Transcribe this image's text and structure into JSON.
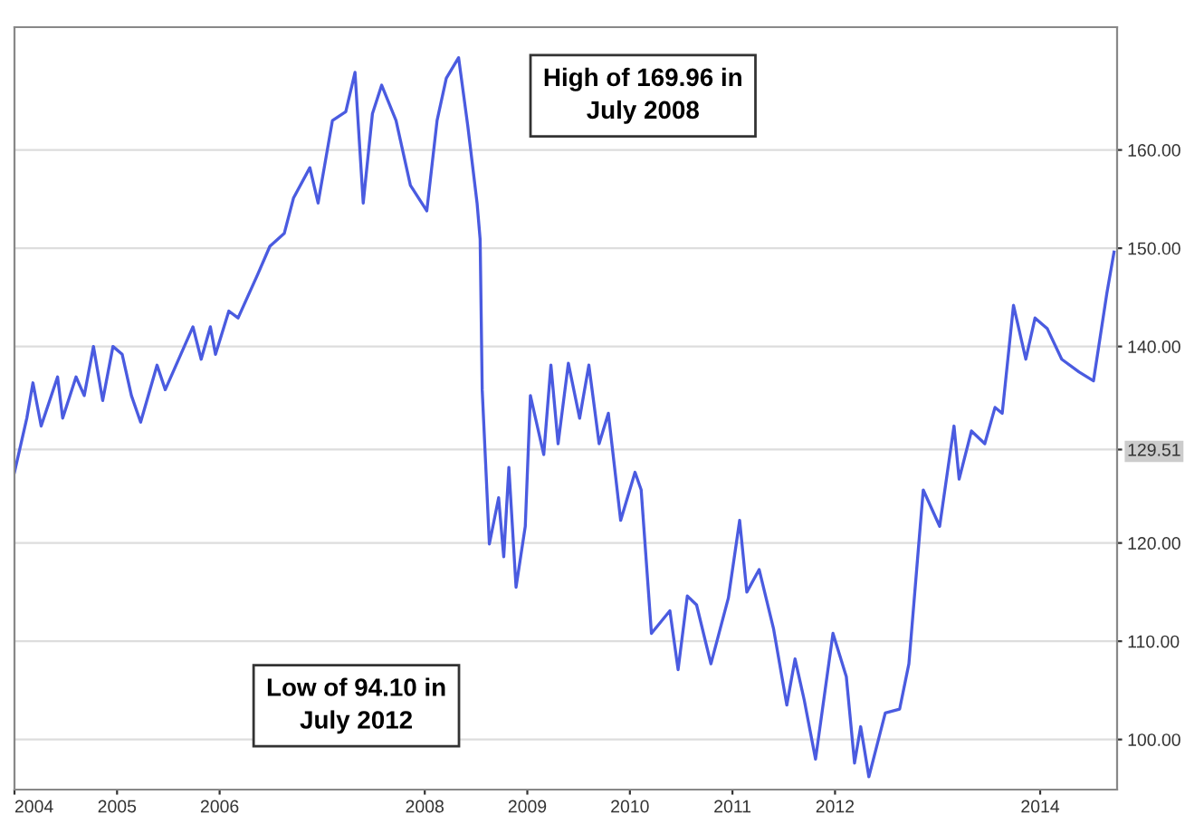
{
  "chart_data": {
    "type": "line",
    "x": [
      2004.0,
      2004.12,
      2004.18,
      2004.26,
      2004.42,
      2004.47,
      2004.6,
      2004.68,
      2004.77,
      2004.86,
      2004.96,
      2005.05,
      2005.14,
      2005.23,
      2005.39,
      2005.47,
      2005.74,
      2005.82,
      2005.91,
      2005.96,
      2006.09,
      2006.18,
      2006.37,
      2006.49,
      2006.63,
      2006.72,
      2006.88,
      2006.96,
      2007.1,
      2007.23,
      2007.32,
      2007.4,
      2007.49,
      2007.58,
      2007.72,
      2007.86,
      2008.02,
      2008.12,
      2008.21,
      2008.33,
      2008.42,
      2008.51,
      2008.54,
      2008.56,
      2008.63,
      2008.72,
      2008.77,
      2008.82,
      2008.89,
      2008.98,
      2009.03,
      2009.16,
      2009.23,
      2009.3,
      2009.4,
      2009.51,
      2009.6,
      2009.7,
      2009.79,
      2009.91,
      2010.05,
      2010.11,
      2010.21,
      2010.39,
      2010.47,
      2010.56,
      2010.65,
      2010.79,
      2010.96,
      2011.07,
      2011.14,
      2011.26,
      2011.4,
      2011.53,
      2011.61,
      2011.7,
      2011.81,
      2011.98,
      2012.11,
      2012.19,
      2012.25,
      2012.33,
      2012.49,
      2012.63,
      2012.72,
      2012.86,
      2013.02,
      2013.16,
      2013.21,
      2013.33,
      2013.46,
      2013.56,
      2013.63,
      2013.74,
      2013.86,
      2013.95,
      2014.07,
      2014.21,
      2014.38,
      2014.52,
      2014.65,
      2014.72
    ],
    "series": [
      {
        "color": "#4a5be0",
        "values": [
          127.2,
          132.7,
          136.3,
          131.9,
          136.9,
          132.7,
          136.9,
          135.0,
          140.0,
          134.5,
          140.0,
          139.2,
          135.0,
          132.3,
          138.1,
          135.6,
          142.0,
          138.7,
          142.0,
          139.2,
          143.6,
          142.9,
          147.3,
          150.2,
          151.5,
          155.1,
          158.2,
          154.6,
          163.0,
          163.9,
          167.9,
          154.6,
          163.7,
          166.6,
          163.0,
          156.4,
          153.8,
          163.0,
          167.3,
          169.4,
          162.4,
          154.6,
          150.9,
          135.6,
          119.9,
          124.6,
          118.6,
          127.7,
          115.5,
          121.7,
          135.0,
          129.0,
          138.1,
          130.1,
          138.3,
          132.7,
          138.1,
          130.1,
          133.2,
          122.3,
          127.2,
          125.4,
          110.8,
          113.1,
          107.1,
          114.6,
          113.7,
          107.7,
          114.4,
          122.3,
          115.0,
          117.3,
          111.3,
          103.5,
          108.2,
          104.0,
          98.0,
          110.8,
          106.4,
          97.6,
          101.3,
          96.2,
          102.7,
          103.1,
          107.7,
          125.4,
          121.7,
          131.9,
          126.5,
          131.4,
          130.1,
          133.8,
          133.2,
          144.2,
          138.7,
          142.9,
          141.8,
          138.7,
          137.4,
          136.5,
          145.4,
          149.6
        ]
      }
    ],
    "xlim": [
      2004.0,
      2014.75
    ],
    "xticks": [
      2004,
      2005,
      2006,
      2008,
      2009,
      2010,
      2011,
      2012,
      2014
    ],
    "ylim": [
      94.9,
      172.5
    ],
    "yticks": [
      {
        "value": 100,
        "label": "100.00"
      },
      {
        "value": 110,
        "label": "110.00"
      },
      {
        "value": 120,
        "label": "120.00"
      },
      {
        "value": 129.51,
        "label": "129.51"
      },
      {
        "value": 140,
        "label": "140.00"
      },
      {
        "value": 150,
        "label": "150.00"
      },
      {
        "value": 160,
        "label": "160.00"
      }
    ],
    "grid": "y",
    "marker": "none",
    "line_style": "solid",
    "legend": false,
    "annotations": [
      "High of 169.96 in\nJuly 2008",
      "Low of 94.10 in\nJuly 2012"
    ]
  }
}
